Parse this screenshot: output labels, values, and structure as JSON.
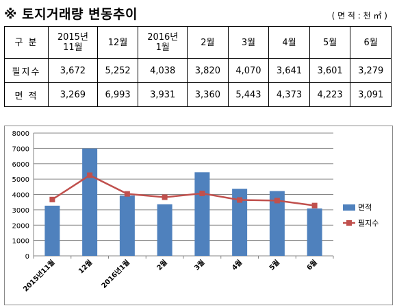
{
  "title": "※ 토지거래량 변동추이",
  "unit": "( 면 적 : 천 ㎡ )",
  "table": {
    "header": [
      "구  분",
      "2015년\n11월",
      "12월",
      "2016년\n1월",
      "2월",
      "3월",
      "4월",
      "5월",
      "6월"
    ],
    "rows": [
      {
        "label": "필지수",
        "values": [
          "3,672",
          "5,252",
          "4,038",
          "3,820",
          "4,070",
          "3,641",
          "3,601",
          "3,279"
        ]
      },
      {
        "label": "면  적",
        "values": [
          "3,269",
          "6,993",
          "3,931",
          "3,360",
          "5,443",
          "4,373",
          "4,223",
          "3,091"
        ]
      }
    ]
  },
  "chart_data": {
    "type": "bar",
    "categories": [
      "2015년11월",
      "12월",
      "2016년1월",
      "2월",
      "3월",
      "4월",
      "5월",
      "6월"
    ],
    "series": [
      {
        "name": "면적",
        "type": "bar",
        "color": "#4f81bd",
        "values": [
          3269,
          6993,
          3931,
          3360,
          5443,
          4373,
          4223,
          3091
        ]
      },
      {
        "name": "필지수",
        "type": "line",
        "color": "#c0504d",
        "values": [
          3672,
          5252,
          4038,
          3820,
          4070,
          3641,
          3601,
          3279
        ]
      }
    ],
    "ylim": [
      0,
      8000
    ],
    "yticks": [
      0,
      1000,
      2000,
      3000,
      4000,
      5000,
      6000,
      7000,
      8000
    ],
    "grid": true,
    "legend": "right"
  }
}
